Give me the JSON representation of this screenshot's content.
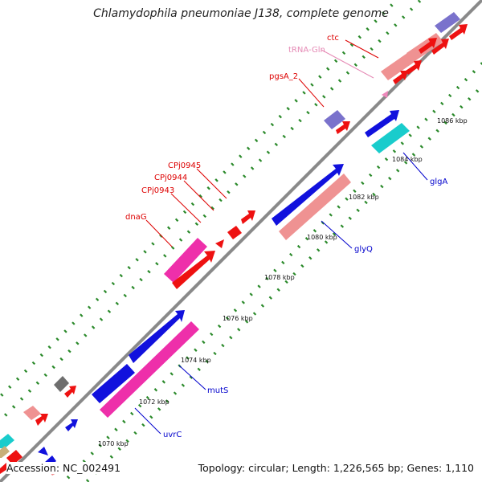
{
  "title": "Chlamydophila pneumoniae J138, complete genome",
  "footer": {
    "accession": "Accession: NC_002491",
    "topology": "Topology: circular; Length: 1,226,565 bp; Genes: 1,110"
  },
  "colors": {
    "backbone": "#8a8a8a",
    "ticks": "#2b8a2b",
    "red": "#ee1111",
    "salmon": "#ef9292",
    "blue": "#1111dd",
    "magenta": "#ee2faa",
    "lavender": "#7a72cc",
    "cyan": "#19cccc",
    "gray": "#6e6e6e",
    "pink_label": "#e58ab5",
    "label_red": "#dd0000",
    "label_blue": "#0000cc"
  },
  "scale_labels": [
    "1070 kbp",
    "1072 kbp",
    "1074 kbp",
    "1076 kbp",
    "1078 kbp",
    "1080 kbp",
    "1082 kbp",
    "1084 kbp",
    "1086 kbp"
  ],
  "gene_labels": [
    {
      "name": "ctc",
      "color": "red"
    },
    {
      "name": "tRNA-Gln",
      "color": "pink"
    },
    {
      "name": "pgsA_2",
      "color": "red"
    },
    {
      "name": "CPj0945",
      "color": "red"
    },
    {
      "name": "CPj0944",
      "color": "red"
    },
    {
      "name": "CPj0943",
      "color": "red"
    },
    {
      "name": "dnaG",
      "color": "red"
    },
    {
      "name": "glgA",
      "color": "blue"
    },
    {
      "name": "glyQ",
      "color": "blue"
    },
    {
      "name": "mutS",
      "color": "blue"
    },
    {
      "name": "uvrC",
      "color": "blue"
    }
  ]
}
